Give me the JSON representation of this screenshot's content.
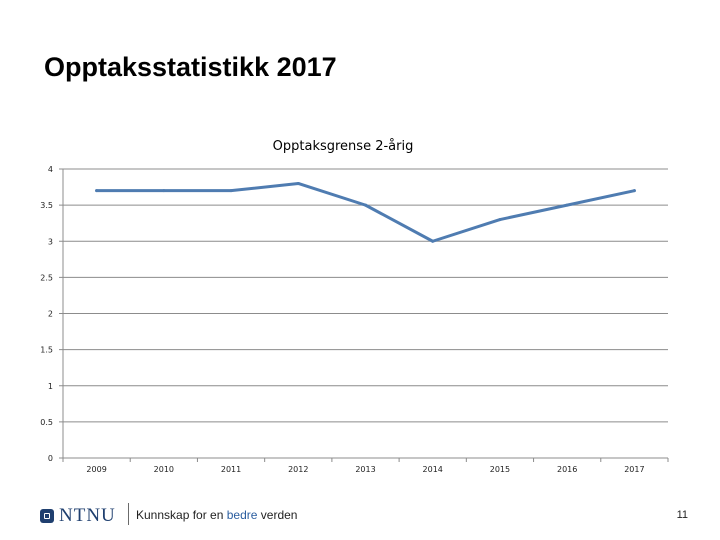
{
  "slide": {
    "title": "Opptaksstatistikk 2017",
    "page_number": "11"
  },
  "footer": {
    "logo_text": "NTNU",
    "tagline_pre": "Kunnskap for en ",
    "tagline_highlight": "bedre",
    "tagline_post": " verden"
  },
  "chart_data": {
    "type": "line",
    "title": "Opptaksgrense 2-årig",
    "xlabel": "",
    "ylabel": "",
    "categories": [
      "2009",
      "2010",
      "2011",
      "2012",
      "2013",
      "2014",
      "2015",
      "2016",
      "2017"
    ],
    "series": [
      {
        "values": [
          3.7,
          3.7,
          3.7,
          3.8,
          3.5,
          3.0,
          3.3,
          3.5,
          3.7
        ]
      }
    ],
    "ylim": [
      0,
      4
    ],
    "yticks": [
      "0",
      "0.5",
      "1",
      "1.5",
      "2",
      "2.5",
      "3",
      "3.5",
      "4"
    ],
    "grid": true,
    "legend": "none",
    "line_color": "#4f7cb1",
    "grid_color": "#8c8c8c"
  }
}
